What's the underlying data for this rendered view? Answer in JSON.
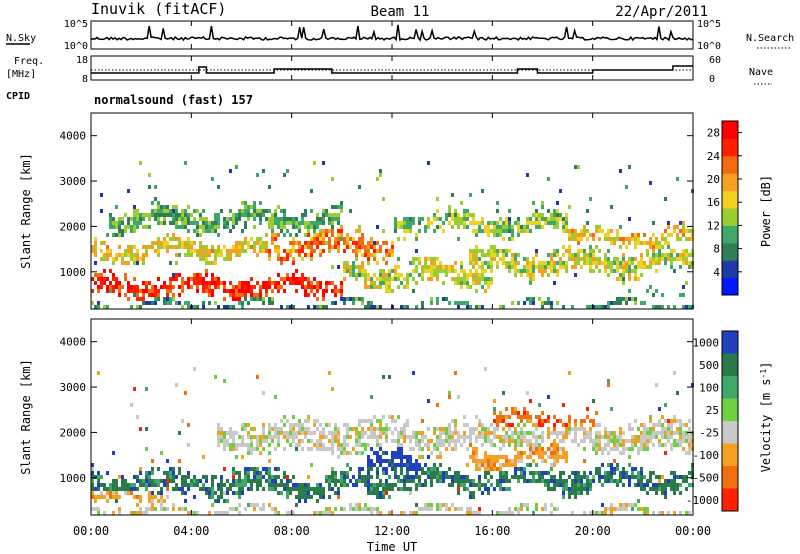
{
  "header": {
    "left": "Inuvik (fitACF)",
    "center": "Beam 11",
    "right": "22/Apr/2011"
  },
  "noise_panel": {
    "left_label": "N.Sky",
    "right_label": "N.Search",
    "left_ticks": [
      "10^5",
      "10^0"
    ],
    "right_ticks": [
      "10^5",
      "10^0"
    ]
  },
  "freq_panel": {
    "left_label_1": "Freq.",
    "left_label_2": "[MHz]",
    "right_label": "Nave",
    "left_ticks": [
      "18",
      "8"
    ],
    "right_ticks": [
      "60",
      "0"
    ]
  },
  "cpid": {
    "label": "CPID",
    "value": "normalsound (fast) 157"
  },
  "x_axis": {
    "label": "Time UT",
    "ticks": [
      "00:00",
      "04:00",
      "08:00",
      "12:00",
      "16:00",
      "20:00",
      "00:00"
    ]
  },
  "chart_data": [
    {
      "type": "heatmap",
      "title": "",
      "xlabel": "Time UT",
      "ylabel": "Slant Range [km]",
      "y_ticks": [
        1000,
        2000,
        3000,
        4000
      ],
      "ylim": [
        180,
        4500
      ],
      "x_ticks": [
        "00:00",
        "04:00",
        "08:00",
        "12:00",
        "16:00",
        "20:00",
        "00:00"
      ],
      "colorbar": {
        "label": "Power [dB]",
        "ticks": [
          4,
          8,
          12,
          16,
          20,
          24,
          28
        ],
        "range": [
          0,
          30
        ],
        "colors": [
          "#0018ff",
          "#1f3aa6",
          "#2f7e58",
          "#3da86a",
          "#9acd32",
          "#f0d020",
          "#f5a020",
          "#f36a10",
          "#ff2000",
          "#ff0000"
        ]
      },
      "bands": [
        {
          "t0": 0.0,
          "t1": 10.0,
          "r": 720,
          "w": 260,
          "level": 27
        },
        {
          "t0": 0.0,
          "t1": 7.0,
          "r": 1520,
          "w": 220,
          "level": 17
        },
        {
          "t0": 7.0,
          "t1": 12.0,
          "r": 1650,
          "w": 320,
          "level": 22
        },
        {
          "t0": 10.0,
          "t1": 16.0,
          "r": 1000,
          "w": 300,
          "level": 15
        },
        {
          "t0": 12.0,
          "t1": 19.0,
          "r": 2100,
          "w": 260,
          "level": 13
        },
        {
          "t0": 15.0,
          "t1": 24.0,
          "r": 1250,
          "w": 300,
          "level": 15
        },
        {
          "t0": 19.0,
          "t1": 24.0,
          "r": 1800,
          "w": 200,
          "level": 18
        },
        {
          "t0": 0.5,
          "t1": 10.0,
          "r": 2200,
          "w": 300,
          "level": 10
        },
        {
          "t0": 0.0,
          "t1": 24.0,
          "r": 300,
          "w": 90,
          "level": 8
        }
      ]
    },
    {
      "type": "heatmap",
      "title": "",
      "xlabel": "Time UT",
      "ylabel": "Slant Range [km]",
      "y_ticks": [
        1000,
        2000,
        3000,
        4000
      ],
      "ylim": [
        180,
        4500
      ],
      "x_ticks": [
        "00:00",
        "04:00",
        "08:00",
        "12:00",
        "16:00",
        "20:00",
        "00:00"
      ],
      "colorbar": {
        "label": "Velocity [m s^-1]",
        "ticks": [
          1000,
          500,
          100,
          25,
          -25,
          -100,
          -500,
          -1000
        ],
        "colors": [
          "#2040c0",
          "#2a7a4a",
          "#3da86a",
          "#6ed040",
          "#c8c8c8",
          "#f5a020",
          "#f07010",
          "#ff2000"
        ]
      },
      "bands": [
        {
          "t0": 0.0,
          "t1": 10.0,
          "r": 900,
          "w": 300,
          "level": 1
        },
        {
          "t0": 10.0,
          "t1": 24.0,
          "r": 1000,
          "w": 280,
          "level": 1
        },
        {
          "t0": 0.0,
          "t1": 3.0,
          "r": 600,
          "w": 160,
          "level": 5
        },
        {
          "t0": 5.0,
          "t1": 24.0,
          "r": 1950,
          "w": 380,
          "level": 4
        },
        {
          "t0": 15.0,
          "t1": 19.0,
          "r": 1500,
          "w": 300,
          "level": 5
        },
        {
          "t0": 16.0,
          "t1": 20.0,
          "r": 2300,
          "w": 200,
          "level": 6
        },
        {
          "t0": 11.0,
          "t1": 13.0,
          "r": 1300,
          "w": 400,
          "level": 0
        },
        {
          "t0": 0.0,
          "t1": 24.0,
          "r": 300,
          "w": 100,
          "level": 4
        }
      ]
    }
  ]
}
